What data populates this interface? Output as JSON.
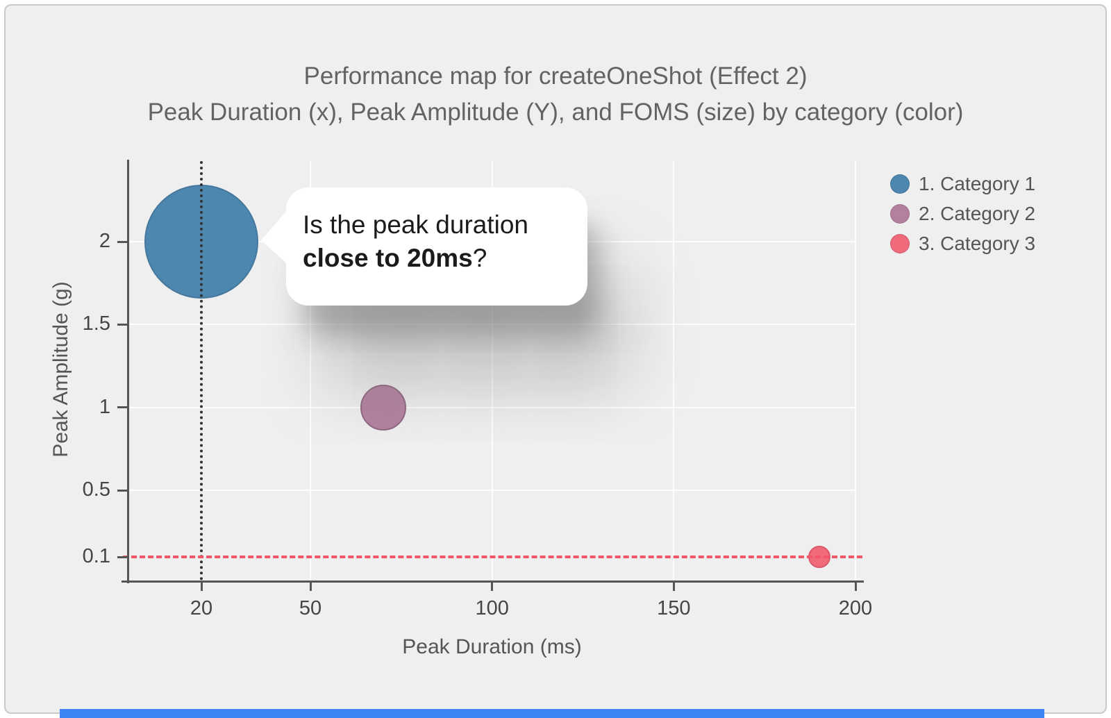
{
  "chart_data": {
    "type": "scatter",
    "title": "Performance map for createOneShot (Effect 2)",
    "subtitle": "Peak Duration (x), Peak Amplitude (Y), and FOMS (size) by category (color)",
    "xlabel": "Peak Duration (ms)",
    "ylabel": "Peak Amplitude (g)",
    "x_ticks": [
      20,
      50,
      100,
      150,
      200
    ],
    "y_ticks": [
      0.1,
      0.5,
      1,
      1.5,
      2
    ],
    "x_range": [
      20,
      200
    ],
    "y_range": [
      0.1,
      2
    ],
    "grid": true,
    "legend_position": "top-right",
    "series": [
      {
        "name": "1. Category 1",
        "color": "#4d87b0",
        "stroke": "#44779b",
        "points": [
          {
            "x": 20,
            "y": 2,
            "r": 82
          }
        ]
      },
      {
        "name": "2. Category 2",
        "color": "#b3809f",
        "stroke": "#8f6781",
        "points": [
          {
            "x": 70,
            "y": 1,
            "r": 33
          }
        ]
      },
      {
        "name": "3. Category 3",
        "color": "#ef6a7b",
        "stroke": "#d85a6c",
        "points": [
          {
            "x": 190,
            "y": 0.1,
            "r": 16
          }
        ]
      }
    ],
    "reference_lines": [
      {
        "axis": "x",
        "value": 20,
        "style": "dotted",
        "color": "#333333"
      },
      {
        "axis": "y",
        "value": 0.1,
        "style": "dashed",
        "color": "#f25669"
      }
    ]
  },
  "tooltip": {
    "line1": "Is the peak duration",
    "bold": "close to 20ms",
    "suffix": "?"
  },
  "misc": {
    "bottom_bar_color": "#3d84f7"
  }
}
